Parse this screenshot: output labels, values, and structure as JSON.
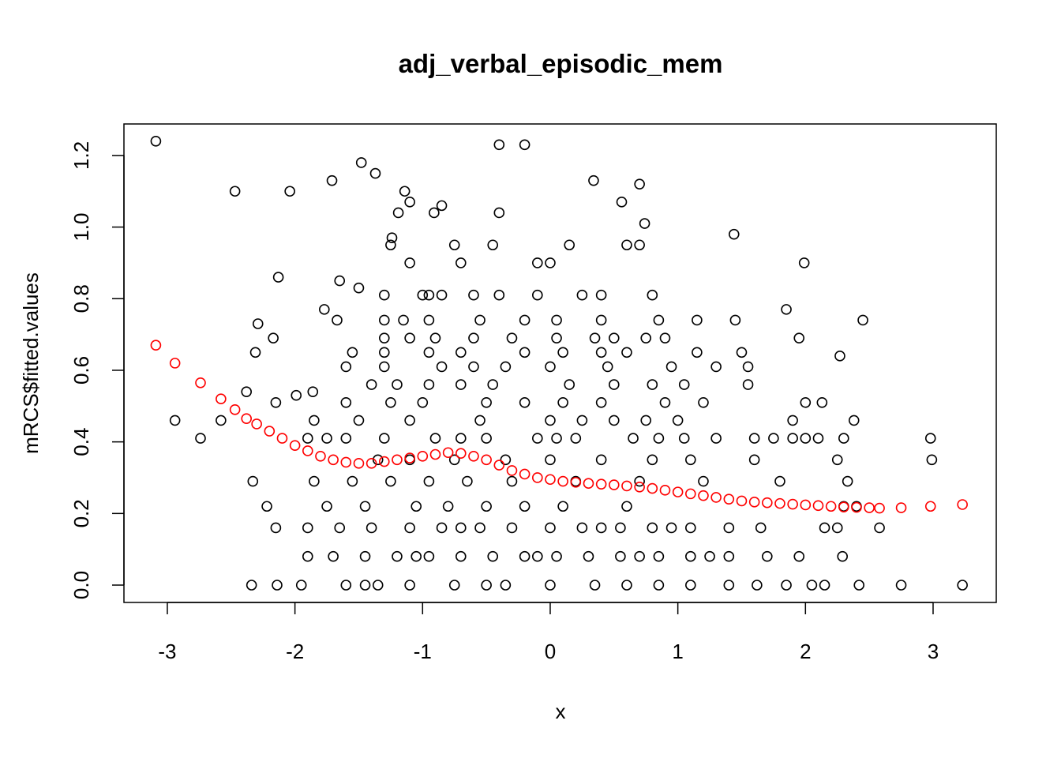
{
  "chart_data": {
    "type": "scatter",
    "title": "adj_verbal_episodic_mem",
    "xlabel": "x",
    "ylabel": "mRCS$fitted.values",
    "xlim": [
      -3.34,
      3.495
    ],
    "ylim": [
      -0.0485,
      1.288
    ],
    "xticks": [
      -3,
      -2,
      -1,
      0,
      1,
      2,
      3
    ],
    "yticks": [
      {
        "value": 0,
        "label": "0.0"
      },
      0.2,
      0.4,
      0.6,
      0.8,
      {
        "value": 1,
        "label": "1.0"
      },
      1.2
    ],
    "series": [
      {
        "color": "#000000",
        "x": [
          -3.09,
          -2.94,
          -2.74,
          -2.58,
          -2.47,
          -2.38,
          -2.33,
          -2.31,
          -2.29,
          -2.22,
          -2.17,
          -2.15,
          -2.13,
          -2.04,
          -1.99,
          -1.86,
          -1.77,
          -1.71,
          -1.67,
          -1.65,
          -1.5,
          -1.48,
          -1.37,
          -1.24,
          -1.14,
          -1.19,
          -1.1,
          -0.91,
          -0.85,
          -0.4,
          -0.2,
          -0.4,
          0.34,
          0.7,
          0.56,
          0.74,
          1.44,
          1.99,
          1.85,
          1.95,
          2.45,
          2.27,
          2.38,
          2.98,
          2.99,
          3.23,
          2.75,
          2.58,
          2.42,
          2.29,
          2.33,
          2.13,
          -2.34,
          -2.14,
          -1.95,
          -1.6,
          -1.35,
          -1.1,
          -0.75,
          -0.35,
          0.0,
          0.35,
          0.6,
          0.85,
          1.1,
          1.4,
          1.62,
          1.85,
          2.05,
          2.15,
          -1.45,
          -0.5,
          -1.9,
          -1.7,
          -1.45,
          -1.2,
          -0.95,
          -0.7,
          -0.45,
          -0.2,
          0.05,
          0.3,
          0.55,
          0.85,
          1.1,
          1.4,
          1.7,
          1.95,
          -1.05,
          -0.1,
          0.7,
          1.25,
          -2.15,
          -1.9,
          -1.65,
          -1.4,
          -1.1,
          -0.85,
          -0.55,
          -0.3,
          0.0,
          0.25,
          0.55,
          0.8,
          1.1,
          1.4,
          1.65,
          2.15,
          2.25,
          -0.7,
          0.4,
          0.95,
          -1.75,
          -1.45,
          -1.05,
          -0.8,
          -0.5,
          -0.2,
          0.1,
          0.6,
          2.3,
          2.4,
          -1.85,
          -1.55,
          -1.25,
          -0.95,
          -0.65,
          -0.3,
          0.2,
          0.7,
          1.2,
          1.8,
          -1.35,
          -1.1,
          -0.75,
          -0.35,
          0.0,
          0.4,
          0.8,
          1.1,
          1.6,
          2.25,
          -1.9,
          -1.6,
          -1.3,
          -0.9,
          -0.5,
          -0.1,
          0.2,
          0.65,
          1.3,
          1.9,
          2.0,
          2.1,
          2.3,
          -1.75,
          -0.7,
          0.05,
          0.85,
          1.05,
          1.6,
          1.75,
          -1.85,
          -1.5,
          -1.1,
          -0.55,
          0.0,
          0.25,
          0.5,
          0.75,
          1.0,
          1.9,
          -1.6,
          -1.25,
          -1.0,
          -0.5,
          -0.2,
          0.1,
          0.4,
          0.9,
          1.2,
          2.0,
          -1.4,
          -1.2,
          -0.95,
          -0.7,
          -0.45,
          0.15,
          0.5,
          0.8,
          1.05,
          1.55,
          -1.6,
          -1.3,
          -0.85,
          -0.6,
          -0.35,
          0.0,
          0.45,
          0.95,
          1.3,
          1.55,
          -1.55,
          -1.3,
          -0.95,
          -0.7,
          -0.2,
          0.1,
          0.4,
          0.6,
          1.15,
          1.5,
          -1.3,
          -0.9,
          -0.6,
          -0.3,
          0.05,
          0.35,
          0.75,
          -1.1,
          0.5,
          0.9,
          -1.3,
          -1.15,
          -0.95,
          -0.55,
          -0.2,
          0.05,
          0.4,
          0.85,
          1.15,
          1.45,
          -1.3,
          -0.95,
          -0.6,
          -0.4,
          -0.1,
          0.25,
          -1.0,
          -0.85,
          0.4,
          0.8,
          -1.1,
          -0.7,
          -0.1,
          0.0,
          -1.25,
          -0.75,
          -0.45,
          0.15,
          0.6,
          0.7
        ],
        "values": [
          1.24,
          0.46,
          0.41,
          0.46,
          1.1,
          0.54,
          0.29,
          0.65,
          0.73,
          0.22,
          0.69,
          0.51,
          0.86,
          1.1,
          0.53,
          0.54,
          0.77,
          1.13,
          0.74,
          0.85,
          0.83,
          1.18,
          1.15,
          0.97,
          1.1,
          1.04,
          1.07,
          1.04,
          1.06,
          1.23,
          1.23,
          1.04,
          1.13,
          1.12,
          1.07,
          1.01,
          0.98,
          0.9,
          0.77,
          0.69,
          0.74,
          0.64,
          0.46,
          0.41,
          0.35,
          0,
          0,
          0.16,
          0,
          0.08,
          0.29,
          0.51,
          0,
          0,
          0,
          0,
          0,
          0,
          0,
          0,
          0,
          0,
          0,
          0,
          0,
          0,
          0,
          0,
          0,
          0,
          0,
          0,
          0.08,
          0.08,
          0.08,
          0.08,
          0.08,
          0.08,
          0.08,
          0.08,
          0.08,
          0.08,
          0.08,
          0.08,
          0.08,
          0.08,
          0.08,
          0.08,
          0.08,
          0.08,
          0.08,
          0.08,
          0.16,
          0.16,
          0.16,
          0.16,
          0.16,
          0.16,
          0.16,
          0.16,
          0.16,
          0.16,
          0.16,
          0.16,
          0.16,
          0.16,
          0.16,
          0.16,
          0.16,
          0.16,
          0.16,
          0.16,
          0.22,
          0.22,
          0.22,
          0.22,
          0.22,
          0.22,
          0.22,
          0.22,
          0.22,
          0.22,
          0.29,
          0.29,
          0.29,
          0.29,
          0.29,
          0.29,
          0.29,
          0.29,
          0.29,
          0.29,
          0.35,
          0.35,
          0.35,
          0.35,
          0.35,
          0.35,
          0.35,
          0.35,
          0.35,
          0.35,
          0.41,
          0.41,
          0.41,
          0.41,
          0.41,
          0.41,
          0.41,
          0.41,
          0.41,
          0.41,
          0.41,
          0.41,
          0.41,
          0.41,
          0.41,
          0.41,
          0.41,
          0.41,
          0.41,
          0.41,
          0.46,
          0.46,
          0.46,
          0.46,
          0.46,
          0.46,
          0.46,
          0.46,
          0.46,
          0.46,
          0.51,
          0.51,
          0.51,
          0.51,
          0.51,
          0.51,
          0.51,
          0.51,
          0.51,
          0.51,
          0.56,
          0.56,
          0.56,
          0.56,
          0.56,
          0.56,
          0.56,
          0.56,
          0.56,
          0.56,
          0.61,
          0.61,
          0.61,
          0.61,
          0.61,
          0.61,
          0.61,
          0.61,
          0.61,
          0.61,
          0.65,
          0.65,
          0.65,
          0.65,
          0.65,
          0.65,
          0.65,
          0.65,
          0.65,
          0.65,
          0.69,
          0.69,
          0.69,
          0.69,
          0.69,
          0.69,
          0.69,
          0.69,
          0.69,
          0.69,
          0.74,
          0.74,
          0.74,
          0.74,
          0.74,
          0.74,
          0.74,
          0.74,
          0.74,
          0.74,
          0.81,
          0.81,
          0.81,
          0.81,
          0.81,
          0.81,
          0.81,
          0.81,
          0.81,
          0.81,
          0.9,
          0.9,
          0.9,
          0.9,
          0.95,
          0.95,
          0.95,
          0.95,
          0.95,
          0.95
        ]
      },
      {
        "color": "#ff0000",
        "x": [
          -3.09,
          -2.94,
          -2.74,
          -2.58,
          -2.47,
          -2.38,
          -2.3,
          -2.2,
          -2.1,
          -2.0,
          -1.9,
          -1.8,
          -1.7,
          -1.6,
          -1.5,
          -1.4,
          -1.3,
          -1.2,
          -1.1,
          -1.0,
          -0.9,
          -0.8,
          -0.7,
          -0.6,
          -0.5,
          -0.4,
          -0.3,
          -0.2,
          -0.1,
          0.0,
          0.1,
          0.2,
          0.3,
          0.4,
          0.5,
          0.6,
          0.7,
          0.8,
          0.9,
          1.0,
          1.1,
          1.2,
          1.3,
          1.4,
          1.5,
          1.6,
          1.7,
          1.8,
          1.9,
          2.0,
          2.1,
          2.2,
          2.3,
          2.4,
          2.5,
          2.58,
          2.75,
          2.98,
          3.23
        ],
        "values": [
          0.67,
          0.62,
          0.565,
          0.52,
          0.49,
          0.465,
          0.45,
          0.43,
          0.41,
          0.39,
          0.375,
          0.36,
          0.35,
          0.343,
          0.34,
          0.34,
          0.345,
          0.35,
          0.355,
          0.36,
          0.365,
          0.37,
          0.368,
          0.36,
          0.35,
          0.335,
          0.32,
          0.31,
          0.3,
          0.295,
          0.29,
          0.287,
          0.284,
          0.282,
          0.28,
          0.277,
          0.274,
          0.27,
          0.265,
          0.26,
          0.255,
          0.25,
          0.245,
          0.24,
          0.235,
          0.232,
          0.23,
          0.228,
          0.226,
          0.224,
          0.222,
          0.22,
          0.218,
          0.217,
          0.216,
          0.215,
          0.216,
          0.22,
          0.225
        ]
      }
    ]
  }
}
